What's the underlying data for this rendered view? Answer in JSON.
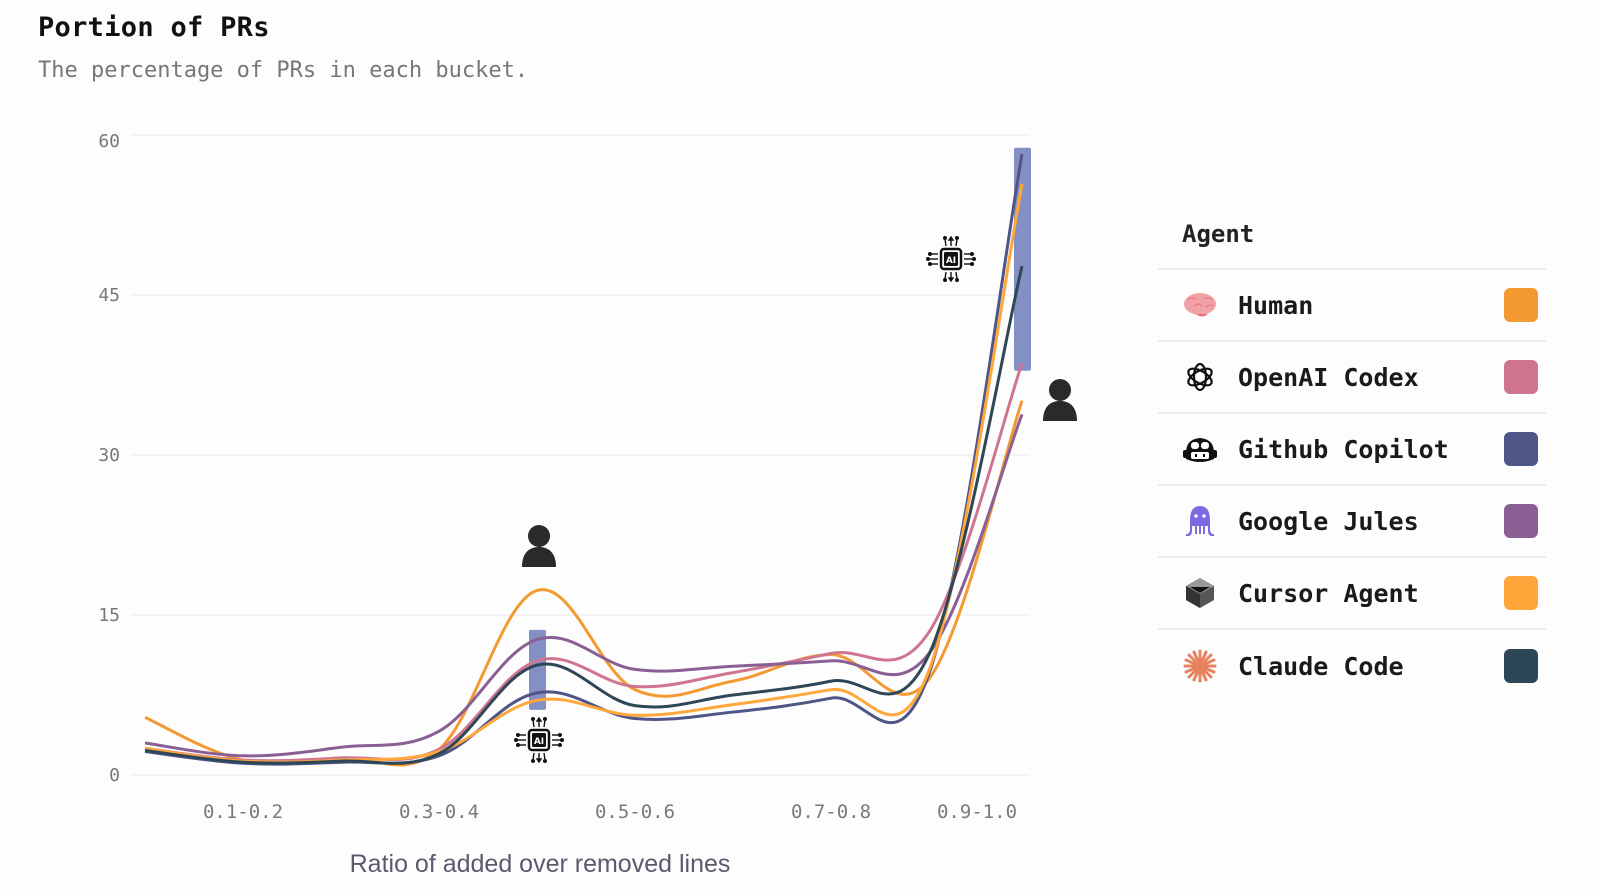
{
  "header": {
    "title": "Portion of PRs",
    "subtitle": "The percentage of PRs in each bucket."
  },
  "legend": {
    "title": "Agent",
    "items": [
      {
        "label": "Human",
        "color": "#F49A33",
        "icon": "brain-icon"
      },
      {
        "label": "OpenAI Codex",
        "color": "#CF7590",
        "icon": "openai-logo-icon"
      },
      {
        "label": "Github Copilot",
        "color": "#4E5587",
        "icon": "copilot-logo-icon"
      },
      {
        "label": "Google Jules",
        "color": "#8A5F94",
        "icon": "jules-octopus-icon"
      },
      {
        "label": "Cursor Agent",
        "color": "#FFA73A",
        "icon": "cursor-cube-icon"
      },
      {
        "label": "Claude Code",
        "color": "#2E4756",
        "icon": "claude-starburst-icon"
      }
    ]
  },
  "annotations": [
    {
      "type": "person-icon",
      "bucket": "0.4-0.5",
      "position": "above"
    },
    {
      "type": "ai-chip-icon",
      "bucket": "0.4-0.5",
      "position": "below"
    },
    {
      "type": "ai-chip-icon",
      "bucket": "0.9-1.0",
      "position": "above-left"
    },
    {
      "type": "person-icon",
      "bucket": "0.9-1.0",
      "position": "right"
    }
  ],
  "chart_data": {
    "type": "line",
    "title": "Portion of PRs",
    "subtitle": "The percentage of PRs in each bucket.",
    "xlabel": "Ratio of added over removed lines",
    "ylabel": "",
    "ylim": [
      0,
      60
    ],
    "yticks": [
      0,
      15,
      30,
      45,
      60
    ],
    "grid": true,
    "legend_position": "right",
    "legend_title": "Agent",
    "x": [
      "0.0-0.1",
      "0.1-0.2",
      "0.2-0.3",
      "0.3-0.4",
      "0.4-0.5",
      "0.5-0.6",
      "0.6-0.7",
      "0.7-0.8",
      "0.8-0.9",
      "0.9-1.0"
    ],
    "xtick_labels": [
      "0.1-0.2",
      "0.3-0.4",
      "0.5-0.6",
      "0.7-0.8",
      "0.9-1.0"
    ],
    "series": [
      {
        "name": "Human",
        "color": "#F49A33",
        "values": [
          5.4,
          1.4,
          1.6,
          2.4,
          17.3,
          8.0,
          8.8,
          11.3,
          9.0,
          35.1
        ]
      },
      {
        "name": "OpenAI Codex",
        "color": "#CF7590",
        "values": [
          2.5,
          1.4,
          1.6,
          2.4,
          10.7,
          8.3,
          9.6,
          11.4,
          13.4,
          38.6
        ]
      },
      {
        "name": "Github Copilot",
        "color": "#4E5587",
        "values": [
          2.2,
          1.1,
          1.2,
          1.8,
          7.7,
          5.3,
          5.9,
          7.2,
          9.5,
          58.2
        ]
      },
      {
        "name": "Google Jules",
        "color": "#8A5F94",
        "values": [
          3.0,
          1.8,
          2.6,
          4.1,
          12.7,
          9.9,
          10.2,
          10.7,
          11.4,
          33.8
        ]
      },
      {
        "name": "Cursor Agent",
        "color": "#FFA73A",
        "values": [
          2.5,
          1.3,
          1.4,
          2.2,
          7.0,
          5.6,
          6.6,
          8.0,
          9.8,
          55.4
        ]
      },
      {
        "name": "Claude Code",
        "color": "#2E4756",
        "values": [
          2.3,
          1.2,
          1.3,
          2.0,
          10.3,
          6.5,
          7.5,
          8.8,
          11.3,
          47.7
        ]
      }
    ],
    "highlight_bars": [
      {
        "bucket": "0.4-0.5",
        "range": [
          6.1,
          13.6
        ],
        "color": "#6F7DBA"
      },
      {
        "bucket": "0.9-1.0",
        "range": [
          37.9,
          58.8
        ],
        "color": "#6F7DBA"
      }
    ]
  }
}
